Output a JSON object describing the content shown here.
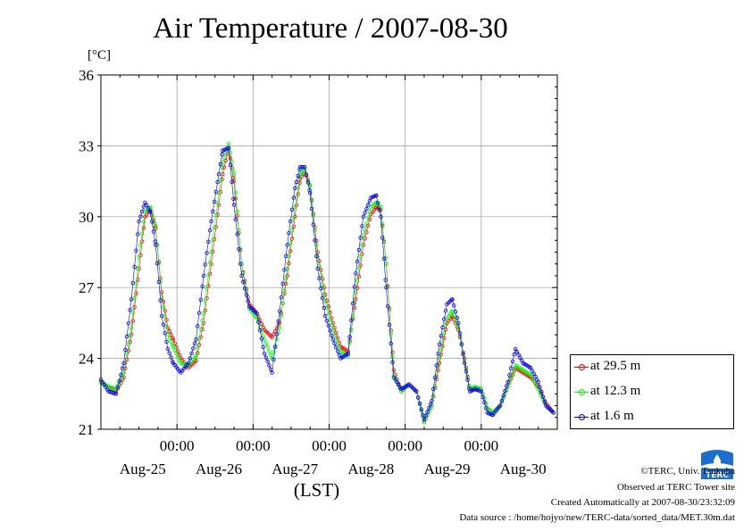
{
  "chart_data": {
    "type": "line",
    "title": "Air Temperature / 2007-08-30",
    "ylabel": "[°C]",
    "xlabel": "(LST)",
    "ylim": [
      21,
      36
    ],
    "yticks": [
      "21",
      "24",
      "27",
      "30",
      "33",
      "36"
    ],
    "xlim_days": [
      0,
      6
    ],
    "xticks_time": [
      "00:00",
      "00:00",
      "00:00",
      "00:00",
      "00:00"
    ],
    "xticks_date": [
      "Aug-25",
      "Aug-26",
      "Aug-27",
      "Aug-28",
      "Aug-29",
      "Aug-30"
    ],
    "grid": true,
    "legend_position": "right",
    "series": [
      {
        "name": "at 29.5 m",
        "color": "#ff0000",
        "x": [
          0,
          0.1,
          0.2,
          0.3,
          0.4,
          0.5,
          0.58,
          0.65,
          0.72,
          0.8,
          0.88,
          0.95,
          1.05,
          1.15,
          1.25,
          1.35,
          1.45,
          1.55,
          1.6,
          1.68,
          1.75,
          1.85,
          1.95,
          2.05,
          2.15,
          2.25,
          2.35,
          2.45,
          2.55,
          2.62,
          2.68,
          2.75,
          2.85,
          2.95,
          3.05,
          3.15,
          3.25,
          3.35,
          3.45,
          3.55,
          3.62,
          3.68,
          3.75,
          3.85,
          3.95,
          4.05,
          4.15,
          4.25,
          4.35,
          4.45,
          4.55,
          4.62,
          4.7,
          4.78,
          4.85,
          4.92,
          5.0,
          5.08,
          5.15,
          5.25,
          5.35,
          5.45,
          5.55,
          5.65,
          5.75,
          5.85,
          5.95
        ],
        "y": [
          23.0,
          22.8,
          22.6,
          23.2,
          25.0,
          27.8,
          30.0,
          30.3,
          29.5,
          26.8,
          25.3,
          24.8,
          24.0,
          23.6,
          23.9,
          25.5,
          28.0,
          30.5,
          31.8,
          32.9,
          31.5,
          28.0,
          26.3,
          25.9,
          25.2,
          24.9,
          25.5,
          27.5,
          30.0,
          31.6,
          31.9,
          31.3,
          28.5,
          26.7,
          25.5,
          24.5,
          24.3,
          26.5,
          28.8,
          30.1,
          30.4,
          30.3,
          28.0,
          23.5,
          22.6,
          22.9,
          22.6,
          21.3,
          22.0,
          23.8,
          25.5,
          25.8,
          25.2,
          24.0,
          22.7,
          22.7,
          22.7,
          21.9,
          21.7,
          22.0,
          22.8,
          23.6,
          23.4,
          23.2,
          22.8,
          22.1,
          21.7
        ]
      },
      {
        "name": "at 12.3 m",
        "color": "#00ff00",
        "x": [
          0,
          0.1,
          0.2,
          0.3,
          0.4,
          0.5,
          0.58,
          0.65,
          0.72,
          0.8,
          0.88,
          0.95,
          1.05,
          1.15,
          1.25,
          1.35,
          1.45,
          1.55,
          1.6,
          1.68,
          1.75,
          1.85,
          1.95,
          2.05,
          2.15,
          2.25,
          2.35,
          2.45,
          2.55,
          2.62,
          2.68,
          2.75,
          2.85,
          2.95,
          3.05,
          3.15,
          3.25,
          3.35,
          3.45,
          3.55,
          3.62,
          3.68,
          3.75,
          3.85,
          3.95,
          4.05,
          4.15,
          4.25,
          4.35,
          4.45,
          4.55,
          4.62,
          4.7,
          4.78,
          4.85,
          4.92,
          5.0,
          5.08,
          5.15,
          5.25,
          5.35,
          5.45,
          5.55,
          5.65,
          5.75,
          5.85,
          5.95
        ],
        "y": [
          23.0,
          22.8,
          22.7,
          23.4,
          25.3,
          28.3,
          30.2,
          30.4,
          29.6,
          26.6,
          25.0,
          24.5,
          23.8,
          23.7,
          24.1,
          25.9,
          28.5,
          31.0,
          32.3,
          33.1,
          31.8,
          28.0,
          26.1,
          25.7,
          24.8,
          24.0,
          25.3,
          27.8,
          30.4,
          31.8,
          32.0,
          31.3,
          28.3,
          26.4,
          25.2,
          24.3,
          24.1,
          26.8,
          29.2,
          30.4,
          30.6,
          30.4,
          28.0,
          23.3,
          22.6,
          22.9,
          22.6,
          21.3,
          22.0,
          24.0,
          25.7,
          26.0,
          25.3,
          23.9,
          22.7,
          22.8,
          22.7,
          21.9,
          21.7,
          22.0,
          22.8,
          23.7,
          23.5,
          23.3,
          22.7,
          22.0,
          21.7
        ]
      },
      {
        "name": "at 1.6 m",
        "color": "#0000ff",
        "x": [
          0,
          0.1,
          0.2,
          0.3,
          0.4,
          0.5,
          0.58,
          0.65,
          0.72,
          0.8,
          0.88,
          0.95,
          1.05,
          1.15,
          1.25,
          1.35,
          1.45,
          1.55,
          1.6,
          1.68,
          1.75,
          1.85,
          1.95,
          2.05,
          2.15,
          2.25,
          2.35,
          2.45,
          2.55,
          2.62,
          2.68,
          2.75,
          2.85,
          2.95,
          3.05,
          3.15,
          3.25,
          3.35,
          3.45,
          3.55,
          3.62,
          3.68,
          3.75,
          3.85,
          3.95,
          4.05,
          4.15,
          4.25,
          4.35,
          4.45,
          4.55,
          4.62,
          4.7,
          4.78,
          4.85,
          4.92,
          5.0,
          5.08,
          5.15,
          5.25,
          5.35,
          5.45,
          5.55,
          5.65,
          5.75,
          5.85,
          5.95
        ],
        "y": [
          23.1,
          22.6,
          22.5,
          23.8,
          26.5,
          29.8,
          30.6,
          30.2,
          28.8,
          25.8,
          24.4,
          23.8,
          23.4,
          23.8,
          24.8,
          27.5,
          29.8,
          31.8,
          32.8,
          32.9,
          30.5,
          27.5,
          26.2,
          25.9,
          24.2,
          23.4,
          26.0,
          28.8,
          31.2,
          32.1,
          32.1,
          31.0,
          27.8,
          25.8,
          24.8,
          24.0,
          24.2,
          27.6,
          30.0,
          30.8,
          30.9,
          30.0,
          27.0,
          23.2,
          22.7,
          22.9,
          22.6,
          21.4,
          22.2,
          24.6,
          26.3,
          26.5,
          25.5,
          23.8,
          22.6,
          22.7,
          22.6,
          21.7,
          21.6,
          22.0,
          23.0,
          24.4,
          23.8,
          23.6,
          23.0,
          22.0,
          21.7
        ]
      }
    ]
  },
  "credits": {
    "line1": "©TERC, Univ. Tsukuba",
    "line2": "Observed at TERC Tower site",
    "line3": "Created Automatically at 2007-08-30/23:32:09",
    "line4": "Data source : /home/hojyo/new/TERC-data/sorted_data/MET.30m.dat"
  },
  "logo": {
    "text": "TERC",
    "color": "#1a6fd1"
  }
}
